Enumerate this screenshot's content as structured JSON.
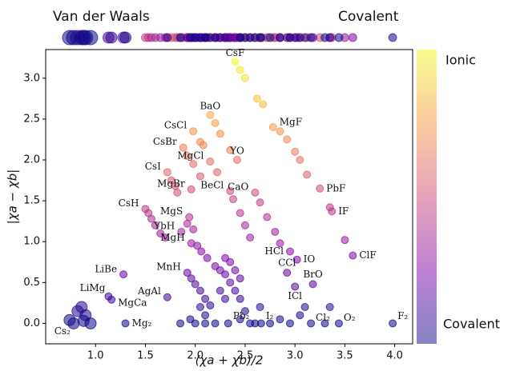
{
  "chart_data": {
    "type": "scatter",
    "xlabel": "(χa + χb)/2",
    "ylabel": "|χa − χb|",
    "xlim": [
      0.5,
      4.18
    ],
    "ylim": [
      -0.25,
      3.35
    ],
    "xticks": [
      {
        "value": 1,
        "label": "1.0"
      },
      1.5,
      {
        "value": 2,
        "label": "2.0"
      },
      2.5,
      {
        "value": 3,
        "label": "3.0"
      },
      3.5,
      {
        "value": 4,
        "label": "4.0"
      }
    ],
    "yticks": [
      {
        "value": 0,
        "label": "0.0"
      },
      0.5,
      {
        "value": 1,
        "label": "1.0"
      },
      1.5,
      {
        "value": 2,
        "label": "2.0"
      },
      2.5,
      {
        "value": 3,
        "label": "3.0"
      }
    ],
    "x": [
      2.4,
      2.45,
      2.5,
      2.62,
      2.68,
      2.78,
      2.85,
      2.92,
      3.0,
      3.05,
      3.12,
      3.25,
      3.35,
      3.37,
      3.5,
      3.58,
      2.15,
      2.2,
      2.25,
      2.35,
      2.42,
      1.98,
      2.05,
      2.08,
      2.15,
      2.22,
      1.88,
      1.92,
      1.98,
      2.05,
      1.72,
      1.76,
      1.8,
      1.82,
      1.96,
      2.35,
      2.38,
      2.45,
      2.5,
      2.55,
      2.6,
      2.65,
      2.72,
      2.8,
      2.85,
      2.95,
      1.5,
      1.53,
      1.56,
      1.6,
      1.65,
      1.7,
      1.94,
      1.92,
      1.98,
      1.86,
      1.96,
      2.02,
      2.06,
      2.12,
      1.92,
      1.96,
      2.0,
      2.05,
      2.1,
      2.15,
      1.72,
      1.28,
      1.13,
      1.16,
      1.3,
      0.78,
      0.82,
      0.86,
      0.9,
      0.74,
      0.88,
      0.95,
      2.33,
      2.66,
      3.16,
      3.44,
      3.98,
      2.92,
      3.02,
      3.0,
      3.18,
      2.2,
      2.25,
      2.3,
      2.35,
      2.4,
      2.45,
      2.3,
      2.35,
      2.4,
      2.45,
      2.25,
      2.3,
      2.05,
      2.1,
      1.95,
      2.0,
      1.85,
      2.1,
      2.2,
      2.45,
      2.55,
      2.6,
      2.75,
      2.85,
      2.95,
      3.05,
      3.1,
      3.3,
      3.35,
      2.5,
      2.65
    ],
    "y": [
      3.2,
      3.1,
      3.0,
      2.75,
      2.68,
      2.4,
      2.35,
      2.25,
      2.1,
      2.0,
      1.82,
      1.65,
      1.42,
      1.37,
      1.02,
      0.83,
      2.55,
      2.45,
      2.32,
      2.12,
      2.0,
      2.35,
      2.22,
      2.18,
      1.98,
      1.85,
      2.15,
      2.05,
      1.95,
      1.8,
      1.85,
      1.75,
      1.68,
      1.6,
      1.64,
      1.62,
      1.52,
      1.35,
      1.2,
      1.05,
      1.6,
      1.48,
      1.3,
      1.12,
      0.98,
      0.88,
      1.4,
      1.35,
      1.28,
      1.2,
      1.1,
      1.05,
      1.3,
      1.22,
      1.15,
      1.12,
      0.98,
      0.95,
      0.88,
      0.8,
      0.62,
      0.55,
      0.48,
      0.4,
      0.3,
      0.22,
      0.32,
      0.6,
      0.33,
      0.29,
      0.0,
      0.0,
      0.15,
      0.2,
      0.1,
      0.04,
      0.03,
      0.0,
      0.0,
      0.0,
      0.0,
      0.0,
      0.0,
      0.62,
      0.78,
      0.45,
      0.48,
      0.7,
      0.65,
      0.6,
      0.5,
      0.4,
      0.3,
      0.8,
      0.75,
      0.65,
      0.55,
      0.4,
      0.3,
      0.2,
      0.1,
      0.05,
      0.0,
      0.0,
      0.0,
      0.0,
      0.05,
      0.0,
      0.0,
      0.0,
      0.05,
      0.0,
      0.1,
      0.2,
      0.0,
      0.2,
      0.15,
      0.2
    ],
    "labels": [
      "CsF",
      null,
      null,
      null,
      null,
      "MgF",
      null,
      null,
      null,
      null,
      null,
      "PbF",
      null,
      "IF",
      null,
      "ClF",
      "BaO",
      null,
      null,
      null,
      "YO",
      "CsCl",
      null,
      null,
      "MgCl",
      null,
      "CsBr",
      null,
      null,
      null,
      "CsI",
      null,
      null,
      null,
      "MgBr",
      "BeCl",
      null,
      null,
      null,
      null,
      "CaO",
      null,
      null,
      null,
      null,
      "HCl",
      "CsH",
      null,
      null,
      null,
      null,
      null,
      "MgS",
      null,
      null,
      "YbH",
      "MgH",
      null,
      null,
      null,
      "MnH",
      null,
      null,
      null,
      null,
      null,
      "AgAl",
      "LiBe",
      "LiMg",
      "MgCa",
      "Mg₂",
      "Cs₂",
      null,
      null,
      null,
      null,
      null,
      null,
      "Pb₂",
      "I₂",
      "Cl₂",
      "O₂",
      "F₂",
      "CCl",
      "IO",
      "ICl",
      "BrO",
      null,
      null,
      null,
      null,
      null,
      null,
      null,
      null,
      null,
      null,
      null,
      null,
      null,
      null,
      null,
      null,
      null,
      null,
      null,
      null,
      null,
      null,
      null,
      null,
      null,
      null,
      null,
      null,
      null,
      null
    ],
    "colormap": [
      "#0d0887",
      "#7e03a8",
      "#cc4778",
      "#f89540",
      "#f0f921"
    ],
    "colorbar_labels": [
      "Ionic",
      "Covalent"
    ],
    "strip_labels": [
      "Van der Waals",
      "Covalent"
    ]
  }
}
